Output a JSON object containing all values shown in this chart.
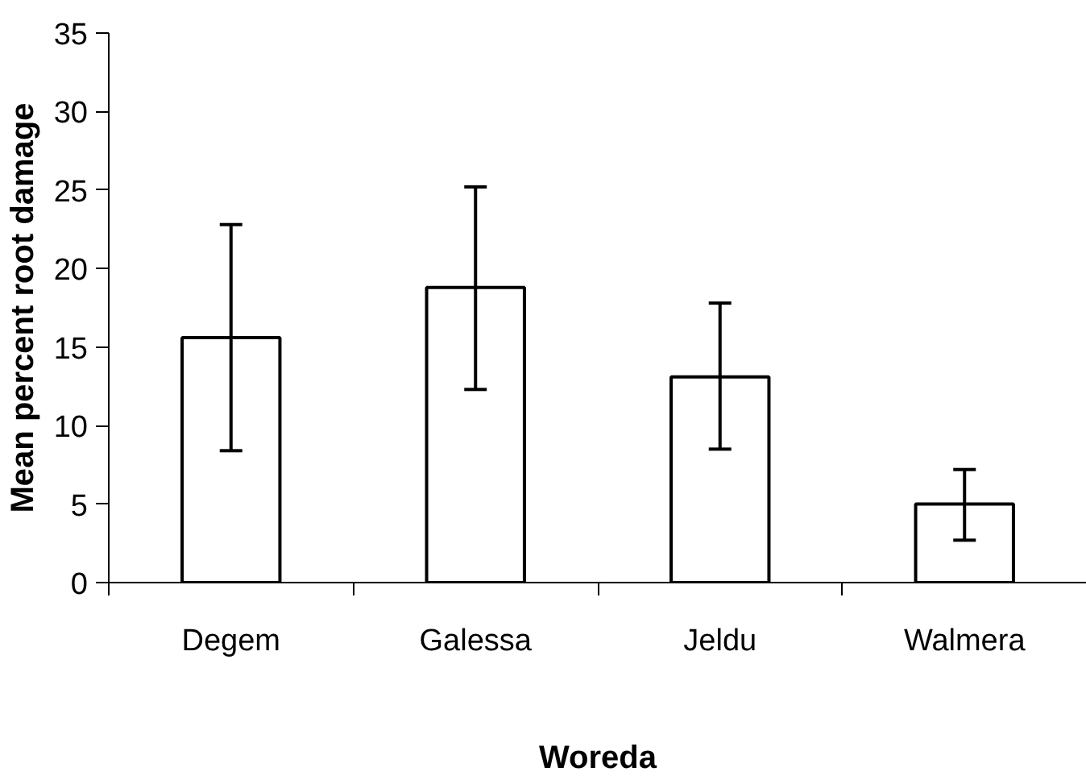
{
  "chart_data": {
    "type": "bar",
    "xlabel": "Woreda",
    "ylabel": "Mean percent root damage",
    "categories": [
      "Degem",
      "Galessa",
      "Jeldu",
      "Walmera"
    ],
    "values": [
      15.6,
      18.8,
      13.1,
      5.0
    ],
    "errors": [
      [
        8.4,
        22.8
      ],
      [
        12.3,
        25.2
      ],
      [
        8.5,
        17.8
      ],
      [
        2.7,
        7.2
      ]
    ],
    "color": "#ffffff",
    "ylim": [
      0,
      35
    ],
    "yticks": [
      0,
      5,
      10,
      15,
      20,
      25,
      30,
      35
    ],
    "grid": false
  }
}
